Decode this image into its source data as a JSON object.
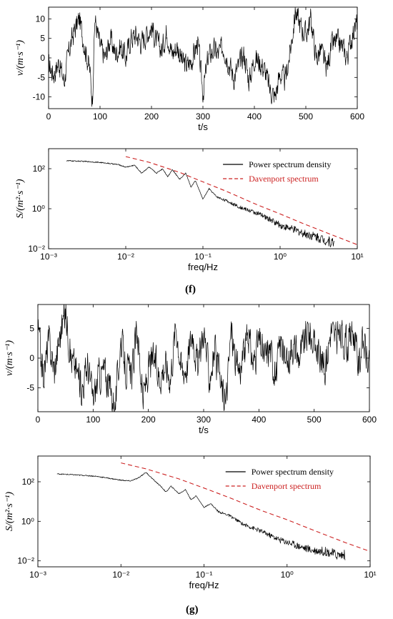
{
  "panel_labels": {
    "f": "(f)",
    "g": "(g)"
  },
  "chart_data": [
    {
      "id": "f_time",
      "type": "line",
      "xlabel": "t/s",
      "ylabel": "v/(m·s⁻¹)",
      "xlim": [
        0,
        600
      ],
      "ylim": [
        -13,
        13
      ],
      "xticks": [
        0,
        100,
        200,
        300,
        400,
        500,
        600
      ],
      "yticks": [
        -10,
        -5,
        0,
        5,
        10
      ],
      "series": [
        {
          "color": "#000000",
          "x": [
            0,
            10,
            20,
            30,
            40,
            50,
            60,
            70,
            80,
            85,
            90,
            100,
            110,
            120,
            130,
            140,
            150,
            160,
            170,
            180,
            190,
            200,
            210,
            220,
            230,
            240,
            250,
            260,
            270,
            280,
            290,
            300,
            310,
            320,
            330,
            340,
            350,
            360,
            370,
            380,
            390,
            400,
            410,
            420,
            430,
            440,
            450,
            460,
            470,
            480,
            490,
            500,
            510,
            520,
            530,
            540,
            550,
            560,
            570,
            580,
            590,
            600
          ],
          "y": [
            -2,
            -4,
            -1,
            -6,
            2,
            7,
            10,
            3,
            -3,
            -11,
            10,
            3,
            0,
            5,
            1,
            3,
            0,
            5,
            6,
            4,
            6,
            8,
            4,
            2,
            7,
            1,
            3,
            -1,
            -2,
            0,
            4,
            -9,
            0,
            2,
            1,
            3,
            -1,
            -5,
            -2,
            1,
            -6,
            0,
            -1,
            -3,
            -8,
            -10,
            -4,
            -6,
            2,
            12,
            8,
            6,
            10,
            0,
            2,
            -3,
            3,
            4,
            3,
            0,
            6,
            9
          ]
        }
      ]
    },
    {
      "id": "f_psd",
      "type": "line",
      "xlabel": "freq/Hz",
      "ylabel": "S/(m²·s⁻¹)",
      "xscale": "log",
      "yscale": "log",
      "xlim": [
        0.001,
        10
      ],
      "ylim": [
        0.01,
        1000
      ],
      "xticks": [
        0.001,
        0.01,
        0.1,
        1,
        10
      ],
      "xticklabels": [
        "10⁻³",
        "10⁻²",
        "10⁻¹",
        "10⁰",
        "10¹"
      ],
      "yticks": [
        0.01,
        1,
        100
      ],
      "yticklabels": [
        "10⁻²",
        "10⁰",
        "10²"
      ],
      "legend_position": "top-right",
      "series": [
        {
          "name": "Power spectrum density",
          "color": "#000000",
          "x": [
            0.0017,
            0.003,
            0.005,
            0.008,
            0.01,
            0.013,
            0.016,
            0.02,
            0.025,
            0.03,
            0.035,
            0.04,
            0.05,
            0.06,
            0.07,
            0.08,
            0.1,
            0.12,
            0.15,
            0.2,
            0.3,
            0.5,
            0.8,
            1,
            1.5,
            2,
            3,
            4,
            5
          ],
          "y": [
            250,
            230,
            200,
            160,
            120,
            150,
            60,
            120,
            60,
            100,
            40,
            90,
            30,
            60,
            12,
            25,
            3,
            10,
            4,
            2.5,
            1.2,
            0.6,
            0.25,
            0.15,
            0.09,
            0.06,
            0.04,
            0.025,
            0.02
          ]
        },
        {
          "name": "Davenport spectrum",
          "color": "#cc2222",
          "dash": true,
          "x": [
            0.01,
            0.02,
            0.05,
            0.1,
            0.2,
            0.5,
            1,
            2,
            5,
            10
          ],
          "y": [
            400,
            210,
            65,
            22,
            7.5,
            1.6,
            0.55,
            0.18,
            0.045,
            0.016
          ]
        }
      ]
    },
    {
      "id": "g_time",
      "type": "line",
      "xlabel": "t/s",
      "ylabel": "v/(m·s⁻¹)",
      "xlim": [
        0,
        600
      ],
      "ylim": [
        -9,
        9
      ],
      "xticks": [
        0,
        100,
        200,
        300,
        400,
        500,
        600
      ],
      "yticks": [
        -5,
        0,
        5
      ],
      "series": [
        {
          "color": "#000000",
          "x": [
            0,
            10,
            20,
            30,
            40,
            50,
            60,
            70,
            80,
            90,
            100,
            110,
            120,
            130,
            140,
            150,
            160,
            170,
            180,
            190,
            200,
            210,
            220,
            230,
            240,
            250,
            260,
            270,
            280,
            290,
            300,
            310,
            320,
            330,
            340,
            350,
            360,
            370,
            380,
            390,
            400,
            410,
            420,
            430,
            440,
            450,
            460,
            470,
            480,
            490,
            500,
            510,
            520,
            530,
            540,
            550,
            560,
            570,
            580,
            590,
            600
          ],
          "y": [
            5,
            -3,
            3,
            -2,
            4,
            8,
            0,
            -2,
            -5,
            -1,
            -7,
            -3,
            -2,
            -5,
            -8,
            3,
            -2,
            -3,
            5,
            -7,
            -2,
            0,
            -3,
            -1,
            -3,
            6,
            -2,
            -1,
            5,
            -2,
            5,
            -3,
            1,
            -4,
            -8,
            5,
            -2,
            -1,
            4,
            -1,
            3,
            0,
            2,
            -3,
            3,
            -2,
            3,
            0,
            2,
            5,
            2,
            1,
            -2,
            5,
            3,
            4,
            2,
            5,
            -1,
            3,
            -2
          ]
        }
      ]
    },
    {
      "id": "g_psd",
      "type": "line",
      "xlabel": "freq/Hz",
      "ylabel": "S/(m²·s⁻¹)",
      "xscale": "log",
      "yscale": "log",
      "xlim": [
        0.001,
        10
      ],
      "ylim": [
        0.005,
        2000
      ],
      "xticks": [
        0.001,
        0.01,
        0.1,
        1,
        10
      ],
      "xticklabels": [
        "10⁻³",
        "10⁻²",
        "10⁻¹",
        "10⁰",
        "10¹"
      ],
      "yticks": [
        0.01,
        1,
        100
      ],
      "yticklabels": [
        "10⁻²",
        "10⁰",
        "10²"
      ],
      "legend_position": "top-right",
      "series": [
        {
          "name": "Power spectrum density",
          "color": "#000000",
          "x": [
            0.0017,
            0.003,
            0.005,
            0.008,
            0.01,
            0.013,
            0.016,
            0.02,
            0.025,
            0.03,
            0.035,
            0.04,
            0.05,
            0.06,
            0.07,
            0.08,
            0.1,
            0.12,
            0.15,
            0.2,
            0.3,
            0.5,
            0.8,
            1,
            1.5,
            2,
            3,
            4,
            5
          ],
          "y": [
            250,
            220,
            190,
            140,
            120,
            110,
            150,
            300,
            120,
            60,
            30,
            60,
            25,
            40,
            12,
            20,
            5,
            8,
            3,
            2,
            0.7,
            0.3,
            0.12,
            0.09,
            0.05,
            0.035,
            0.03,
            0.02,
            0.02
          ]
        },
        {
          "name": "Davenport spectrum",
          "color": "#cc2222",
          "dash": true,
          "x": [
            0.01,
            0.02,
            0.05,
            0.1,
            0.2,
            0.5,
            1,
            2,
            5,
            10
          ],
          "y": [
            900,
            450,
            140,
            48,
            16,
            3.4,
            1.2,
            0.38,
            0.085,
            0.03
          ]
        }
      ]
    }
  ]
}
